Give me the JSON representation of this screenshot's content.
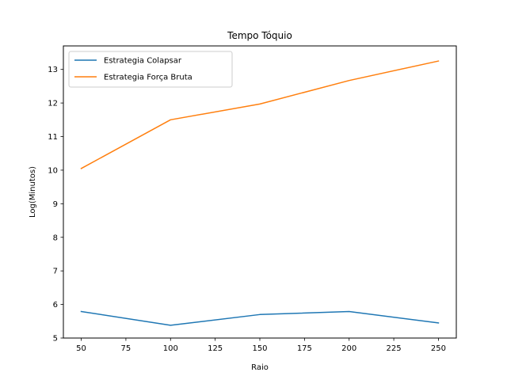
{
  "chart_data": {
    "type": "line",
    "title": "Tempo Tóquio",
    "xlabel": "Raio",
    "ylabel": "Log(Minutos)",
    "xlim": [
      40,
      260
    ],
    "ylim": [
      5,
      13.7
    ],
    "xticks": [
      50,
      75,
      100,
      125,
      150,
      175,
      200,
      225,
      250
    ],
    "yticks": [
      5,
      6,
      7,
      8,
      9,
      10,
      11,
      12,
      13
    ],
    "grid": false,
    "legend_position": "top-left",
    "x": [
      50,
      100,
      150,
      200,
      250
    ],
    "series": [
      {
        "name": "Estrategia Colapsar",
        "color": "#1f77b4",
        "values": [
          5.79,
          5.38,
          5.7,
          5.79,
          5.45
        ]
      },
      {
        "name": "Estrategia Força Bruta",
        "color": "#ff7f0e",
        "values": [
          10.05,
          11.5,
          11.97,
          12.67,
          13.25
        ]
      }
    ]
  }
}
